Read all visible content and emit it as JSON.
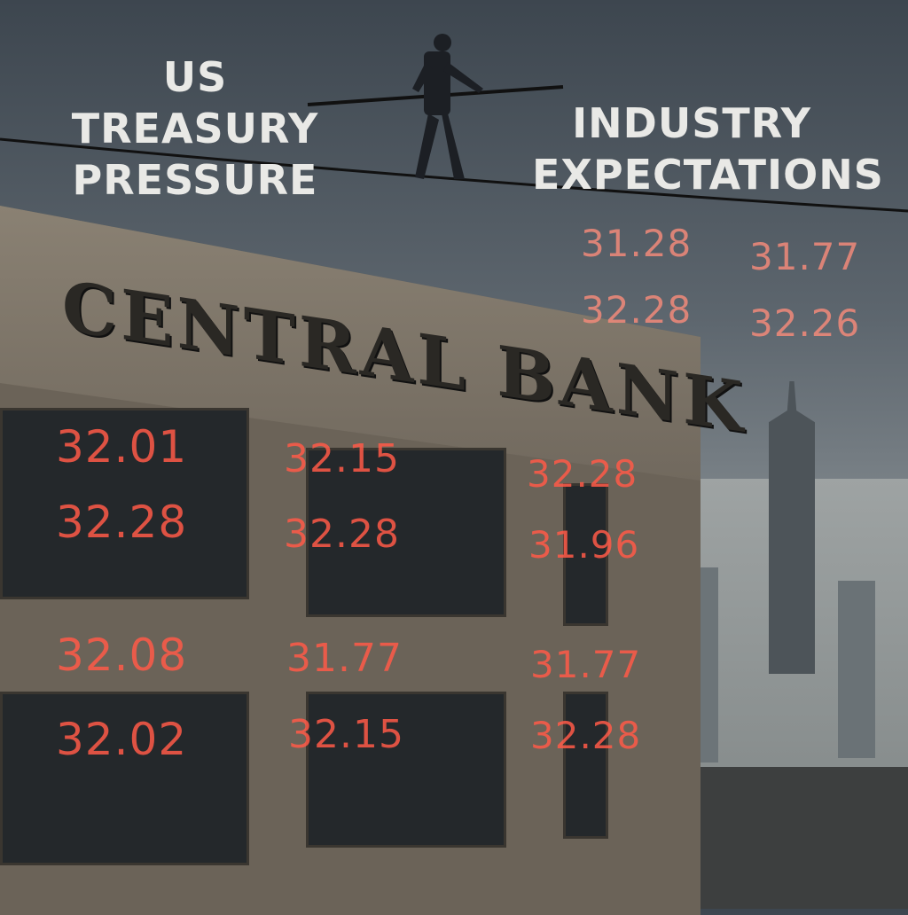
{
  "labels": {
    "left": [
      "US",
      "TREASURY",
      "PRESSURE"
    ],
    "right": [
      "INDUSTRY",
      "EXPECTATIONS"
    ],
    "building_sign": "CENTRAL BANK"
  },
  "sky_numbers": [
    "31.28",
    "31.77",
    "32.28",
    "32.26"
  ],
  "building_numbers": {
    "col1": [
      "32.01",
      "32.28",
      "32.08",
      "32.02"
    ],
    "col2": [
      "32.15",
      "32.28",
      "31.77",
      "32.15"
    ],
    "col3": [
      "32.28",
      "31.96",
      "31.77",
      "32.28"
    ]
  },
  "colors": {
    "numbers": "#ff5a48",
    "sky": "#4a535b",
    "building": "#6b6358"
  }
}
